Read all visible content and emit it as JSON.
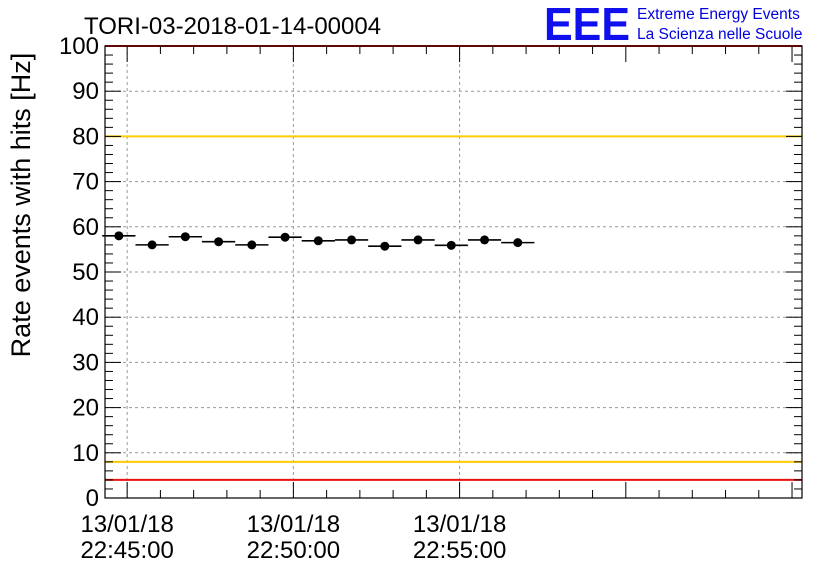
{
  "chart_data": {
    "type": "scatter",
    "title": "TORI-03-2018-01-14-00004",
    "xlabel": "",
    "ylabel": "Rate events with hits [Hz]",
    "ylim": [
      0,
      100
    ],
    "yticks": [
      0,
      10,
      20,
      30,
      40,
      50,
      60,
      70,
      80,
      90,
      100
    ],
    "x_unit": "seconds since 13/01/18 22:45:00",
    "xlim": [
      -40,
      1218
    ],
    "x_tick_labels": [
      {
        "value": 0,
        "date": "13/01/18",
        "time": "22:45:00"
      },
      {
        "value": 300,
        "date": "13/01/18",
        "time": "22:50:00"
      },
      {
        "value": 600,
        "date": "13/01/18",
        "time": "22:55:00"
      }
    ],
    "grid": true,
    "bin_width": 60,
    "series": [
      {
        "name": "rate",
        "x": [
          -15,
          45,
          105,
          165,
          225,
          285,
          345,
          405,
          465,
          525,
          585,
          645,
          705
        ],
        "values": [
          58.0,
          56.0,
          57.8,
          56.7,
          56.0,
          57.7,
          56.9,
          57.1,
          55.7,
          57.1,
          55.9,
          57.1,
          56.5
        ]
      }
    ],
    "reference_lines": [
      {
        "name": "upper-red-line",
        "value": 100,
        "color": "#ee1111"
      },
      {
        "name": "upper-yellow-line",
        "value": 80,
        "color": "#ffcc00"
      },
      {
        "name": "lower-yellow-line",
        "value": 8,
        "color": "#ffcc00"
      },
      {
        "name": "lower-red-line",
        "value": 4,
        "color": "#ee1111"
      }
    ]
  },
  "logo": {
    "mark": "EEE",
    "line1": "Extreme Energy Events",
    "line2": "La Scienza nelle Scuole",
    "color": "#1010ee"
  }
}
